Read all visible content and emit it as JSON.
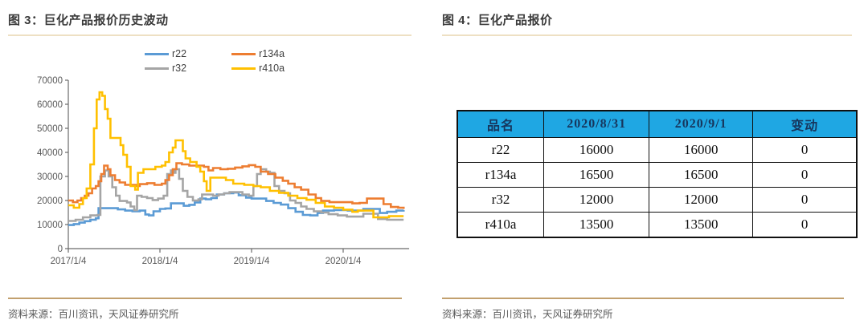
{
  "colors": {
    "title_text": "#3b3b3b",
    "title_underline": "#eee0c3",
    "source_rule": "#c2a06e",
    "source_text": "#595959",
    "axis": "#6b6b6b",
    "axis_label": "#595959"
  },
  "figure3": {
    "title": "图 3：巨化产品报价历史波动",
    "source": "资料来源：百川资讯，天风证券研究所"
  },
  "figure4": {
    "title": "图 4：巨化产品报价",
    "source": "资料来源：百川资讯，天风证券研究所",
    "table": {
      "header_bg": "#1fa7e3",
      "header_text_color": "#17365d",
      "headers": [
        "品名",
        "2020/8/31",
        "2020/9/1",
        "变动"
      ],
      "rows": [
        [
          "r22",
          "16000",
          "16000",
          "0"
        ],
        [
          "r134a",
          "16500",
          "16500",
          "0"
        ],
        [
          "r32",
          "12000",
          "12000",
          "0"
        ],
        [
          "r410a",
          "13500",
          "13500",
          "0"
        ]
      ]
    }
  },
  "chart_data": {
    "type": "line",
    "title": "",
    "xlabel": "",
    "ylabel": "",
    "grid": false,
    "legend_position": "top",
    "x_unit": "years since 2017/1/4",
    "xlim": [
      0,
      3.72
    ],
    "ylim": [
      0,
      70000
    ],
    "y_ticks": [
      0,
      10000,
      20000,
      30000,
      40000,
      50000,
      60000,
      70000
    ],
    "x_ticks": [
      {
        "pos": 0,
        "label": "2017/1/4"
      },
      {
        "pos": 1,
        "label": "2018/1/4"
      },
      {
        "pos": 2,
        "label": "2019/1/4"
      },
      {
        "pos": 3,
        "label": "2020/1/4"
      }
    ],
    "draw_order": [
      0,
      2,
      1,
      3
    ],
    "series": [
      {
        "name": "r22",
        "color": "#5B9BD5",
        "points": [
          [
            0.0,
            9800
          ],
          [
            0.06,
            10200
          ],
          [
            0.12,
            10800
          ],
          [
            0.18,
            11400
          ],
          [
            0.24,
            12000
          ],
          [
            0.3,
            12600
          ],
          [
            0.33,
            16800
          ],
          [
            0.48,
            16800
          ],
          [
            0.54,
            16300
          ],
          [
            0.62,
            15800
          ],
          [
            0.7,
            15500
          ],
          [
            0.78,
            15800
          ],
          [
            0.84,
            14200
          ],
          [
            0.88,
            13800
          ],
          [
            0.93,
            15500
          ],
          [
            1.0,
            16500
          ],
          [
            1.06,
            16700
          ],
          [
            1.12,
            18800
          ],
          [
            1.2,
            18800
          ],
          [
            1.26,
            17800
          ],
          [
            1.32,
            18200
          ],
          [
            1.38,
            19200
          ],
          [
            1.44,
            20800
          ],
          [
            1.5,
            20500
          ],
          [
            1.56,
            21000
          ],
          [
            1.62,
            22500
          ],
          [
            1.7,
            23000
          ],
          [
            1.8,
            23300
          ],
          [
            1.86,
            22200
          ],
          [
            1.94,
            21200
          ],
          [
            2.0,
            20800
          ],
          [
            2.08,
            20800
          ],
          [
            2.16,
            19800
          ],
          [
            2.24,
            19000
          ],
          [
            2.32,
            18300
          ],
          [
            2.4,
            16800
          ],
          [
            2.48,
            15300
          ],
          [
            2.56,
            14000
          ],
          [
            2.64,
            13800
          ],
          [
            2.72,
            14800
          ],
          [
            2.78,
            15800
          ],
          [
            2.9,
            16000
          ],
          [
            3.05,
            15800
          ],
          [
            3.15,
            15800
          ],
          [
            3.22,
            16500
          ],
          [
            3.32,
            16500
          ],
          [
            3.4,
            14800
          ],
          [
            3.48,
            15300
          ],
          [
            3.58,
            15800
          ],
          [
            3.66,
            16000
          ]
        ]
      },
      {
        "name": "r134a",
        "color": "#ED7D31",
        "points": [
          [
            0.0,
            20000
          ],
          [
            0.05,
            19300
          ],
          [
            0.1,
            20000
          ],
          [
            0.14,
            21000
          ],
          [
            0.18,
            22000
          ],
          [
            0.22,
            23000
          ],
          [
            0.26,
            25000
          ],
          [
            0.3,
            26000
          ],
          [
            0.33,
            28000
          ],
          [
            0.36,
            31000
          ],
          [
            0.39,
            34500
          ],
          [
            0.43,
            33000
          ],
          [
            0.46,
            30500
          ],
          [
            0.51,
            28500
          ],
          [
            0.56,
            27500
          ],
          [
            0.62,
            26500
          ],
          [
            0.7,
            26500
          ],
          [
            0.74,
            26000
          ],
          [
            0.78,
            26800
          ],
          [
            0.86,
            27200
          ],
          [
            0.94,
            26500
          ],
          [
            1.02,
            27000
          ],
          [
            1.06,
            28500
          ],
          [
            1.1,
            30500
          ],
          [
            1.14,
            33000
          ],
          [
            1.18,
            35500
          ],
          [
            1.24,
            35000
          ],
          [
            1.32,
            34500
          ],
          [
            1.42,
            34500
          ],
          [
            1.48,
            34000
          ],
          [
            1.53,
            32500
          ],
          [
            1.58,
            33500
          ],
          [
            1.66,
            33000
          ],
          [
            1.74,
            33200
          ],
          [
            1.82,
            33700
          ],
          [
            1.9,
            34200
          ],
          [
            1.97,
            34700
          ],
          [
            2.04,
            34000
          ],
          [
            2.1,
            32000
          ],
          [
            2.18,
            31000
          ],
          [
            2.26,
            29500
          ],
          [
            2.34,
            28200
          ],
          [
            2.4,
            27000
          ],
          [
            2.47,
            25500
          ],
          [
            2.54,
            24500
          ],
          [
            2.62,
            22500
          ],
          [
            2.7,
            21000
          ],
          [
            2.76,
            19800
          ],
          [
            2.85,
            19300
          ],
          [
            3.0,
            19300
          ],
          [
            3.1,
            18800
          ],
          [
            3.18,
            19000
          ],
          [
            3.26,
            20800
          ],
          [
            3.36,
            20800
          ],
          [
            3.44,
            18500
          ],
          [
            3.52,
            17300
          ],
          [
            3.6,
            17000
          ],
          [
            3.66,
            16500
          ]
        ]
      },
      {
        "name": "r32",
        "color": "#A5A5A5",
        "points": [
          [
            0.0,
            11500
          ],
          [
            0.08,
            12000
          ],
          [
            0.16,
            13000
          ],
          [
            0.24,
            13800
          ],
          [
            0.32,
            14000
          ],
          [
            0.35,
            30000
          ],
          [
            0.4,
            32500
          ],
          [
            0.44,
            30000
          ],
          [
            0.48,
            25500
          ],
          [
            0.52,
            22000
          ],
          [
            0.56,
            19800
          ],
          [
            0.64,
            19200
          ],
          [
            0.68,
            17500
          ],
          [
            0.72,
            16000
          ],
          [
            0.75,
            22000
          ],
          [
            0.8,
            21500
          ],
          [
            0.86,
            21000
          ],
          [
            0.92,
            20200
          ],
          [
            0.98,
            20800
          ],
          [
            1.04,
            22000
          ],
          [
            1.08,
            31000
          ],
          [
            1.12,
            32500
          ],
          [
            1.15,
            31500
          ],
          [
            1.17,
            33000
          ],
          [
            1.21,
            29000
          ],
          [
            1.25,
            24000
          ],
          [
            1.3,
            21500
          ],
          [
            1.36,
            20000
          ],
          [
            1.42,
            20500
          ],
          [
            1.46,
            22500
          ],
          [
            1.52,
            22500
          ],
          [
            1.58,
            22000
          ],
          [
            1.64,
            22500
          ],
          [
            1.7,
            23000
          ],
          [
            1.76,
            23500
          ],
          [
            1.84,
            23500
          ],
          [
            1.9,
            22500
          ],
          [
            1.97,
            22000
          ],
          [
            2.02,
            26000
          ],
          [
            2.06,
            31000
          ],
          [
            2.1,
            33000
          ],
          [
            2.16,
            32000
          ],
          [
            2.2,
            31500
          ],
          [
            2.25,
            26000
          ],
          [
            2.3,
            24000
          ],
          [
            2.36,
            23000
          ],
          [
            2.42,
            20000
          ],
          [
            2.48,
            19000
          ],
          [
            2.54,
            17500
          ],
          [
            2.6,
            16500
          ],
          [
            2.68,
            15500
          ],
          [
            2.76,
            15000
          ],
          [
            2.84,
            14300
          ],
          [
            2.94,
            13800
          ],
          [
            3.04,
            13300
          ],
          [
            3.14,
            13300
          ],
          [
            3.22,
            14500
          ],
          [
            3.32,
            14500
          ],
          [
            3.38,
            12300
          ],
          [
            3.48,
            12000
          ],
          [
            3.66,
            12000
          ]
        ]
      },
      {
        "name": "r410a",
        "color": "#FFC000",
        "points": [
          [
            0.0,
            18000
          ],
          [
            0.06,
            17000
          ],
          [
            0.12,
            18500
          ],
          [
            0.16,
            21000
          ],
          [
            0.2,
            25000
          ],
          [
            0.24,
            35000
          ],
          [
            0.28,
            50000
          ],
          [
            0.31,
            62000
          ],
          [
            0.34,
            65000
          ],
          [
            0.37,
            63500
          ],
          [
            0.4,
            58000
          ],
          [
            0.43,
            54000
          ],
          [
            0.46,
            46000
          ],
          [
            0.54,
            46000
          ],
          [
            0.57,
            43000
          ],
          [
            0.6,
            39000
          ],
          [
            0.64,
            34000
          ],
          [
            0.68,
            26000
          ],
          [
            0.73,
            24500
          ],
          [
            0.76,
            31500
          ],
          [
            0.82,
            33000
          ],
          [
            0.95,
            34000
          ],
          [
            1.02,
            34500
          ],
          [
            1.06,
            36000
          ],
          [
            1.1,
            40000
          ],
          [
            1.14,
            42000
          ],
          [
            1.17,
            45000
          ],
          [
            1.22,
            45000
          ],
          [
            1.25,
            40500
          ],
          [
            1.28,
            37500
          ],
          [
            1.33,
            36000
          ],
          [
            1.4,
            34000
          ],
          [
            1.44,
            32000
          ],
          [
            1.48,
            28000
          ],
          [
            1.51,
            24000
          ],
          [
            1.55,
            29500
          ],
          [
            1.64,
            29500
          ],
          [
            1.72,
            28500
          ],
          [
            1.8,
            27000
          ],
          [
            1.92,
            26500
          ],
          [
            2.02,
            26000
          ],
          [
            2.1,
            25500
          ],
          [
            2.2,
            24000
          ],
          [
            2.3,
            23200
          ],
          [
            2.4,
            22000
          ],
          [
            2.5,
            21000
          ],
          [
            2.6,
            20300
          ],
          [
            2.7,
            19000
          ],
          [
            2.8,
            17500
          ],
          [
            2.9,
            17000
          ],
          [
            3.0,
            16200
          ],
          [
            3.1,
            15300
          ],
          [
            3.16,
            15800
          ],
          [
            3.28,
            15800
          ],
          [
            3.33,
            13000
          ],
          [
            3.5,
            13500
          ],
          [
            3.66,
            13500
          ]
        ]
      }
    ]
  }
}
